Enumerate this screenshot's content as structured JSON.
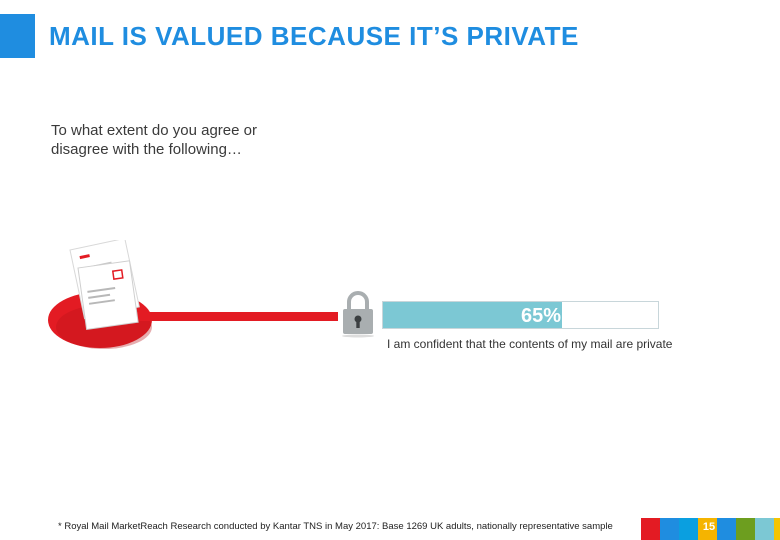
{
  "slide": {
    "title": "MAIL IS VALUED BECAUSE IT’S PRIVATE",
    "question": "To what extent do you agree or disagree with the following…",
    "stat": {
      "value_text": "65%",
      "fraction": 0.65,
      "label": "I am confident that the contents of my mail are private"
    },
    "footnote": "* Royal Mail MarketReach Research conducted by Kantar TNS in May 2017: Base 1269 UK adults, nationally representative sample",
    "page_number": "15",
    "colors": {
      "title_accent": "#1f8de0",
      "mail_red": "#e31b23",
      "bar_fill": "#7cc8d4",
      "lock_grey": "#a9aeb0"
    },
    "footer_swatches": [
      "#e31b23",
      "#1f8de0",
      "#0a9fe0",
      "#f5b400",
      "#1f8de0",
      "#6d9e1f",
      "#7cc8d4",
      "#f5c400",
      "#c9c9c9"
    ],
    "icons": [
      "mail-illustration-icon",
      "padlock-icon"
    ]
  }
}
